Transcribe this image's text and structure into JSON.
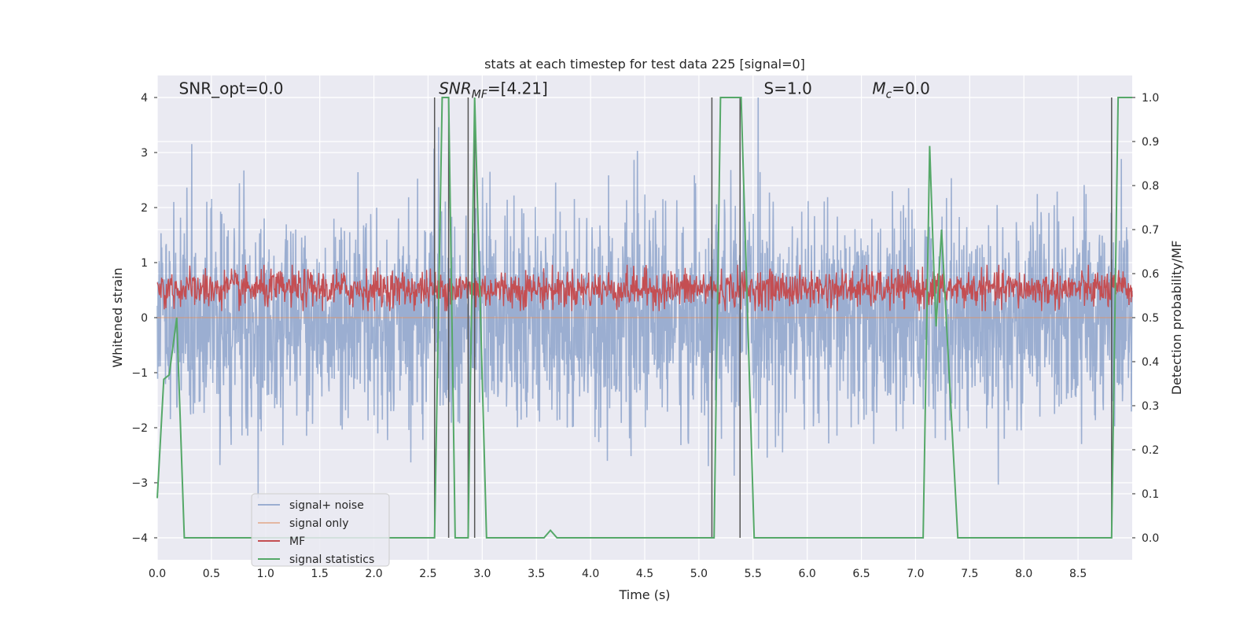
{
  "chart_data": {
    "type": "line",
    "title": "stats at each timestep for test data 225 [signal=0]",
    "xlabel": "Time (s)",
    "ylabel_left": "Whitened strain",
    "ylabel_right": "Detection probability/MF",
    "xlim": [
      0.0,
      9.0
    ],
    "ylim_left": [
      -4.4,
      4.4
    ],
    "ylim_right": [
      -0.05,
      1.05
    ],
    "xticks": [
      "0.0",
      "0.5",
      "1.0",
      "1.5",
      "2.0",
      "2.5",
      "3.0",
      "3.5",
      "4.0",
      "4.5",
      "5.0",
      "5.5",
      "6.0",
      "6.5",
      "7.0",
      "7.5",
      "8.0",
      "8.5"
    ],
    "yticks_left": [
      "−4",
      "−3",
      "−2",
      "−1",
      "0",
      "1",
      "2",
      "3",
      "4"
    ],
    "yticks_right": [
      "0.0",
      "0.1",
      "0.2",
      "0.3",
      "0.4",
      "0.5",
      "0.6",
      "0.7",
      "0.8",
      "0.9",
      "1.0"
    ],
    "grid": true,
    "legend_position": "lower-left",
    "annotations": [
      {
        "text": "SNR_opt=0.0",
        "x": 0.2,
        "y": 4.15
      },
      {
        "text": "SNR_MF=[4.21]",
        "x": 2.6,
        "y": 4.15
      },
      {
        "text": "S=1.0",
        "x": 5.6,
        "y": 4.15
      },
      {
        "text": "M_c=0.0",
        "x": 6.6,
        "y": 4.15
      }
    ],
    "series": [
      {
        "name": "signal+ noise",
        "axis": "left",
        "color": "#4C72B0",
        "alpha": 0.5,
        "description": "whitened strain noise, roughly uniform amplitude ~±1.6 with spikes up to ±4"
      },
      {
        "name": "signal only",
        "axis": "left",
        "color": "#DD8452",
        "alpha": 0.5,
        "values_constant": 0
      },
      {
        "name": "MF",
        "axis": "right",
        "color": "#C44E52",
        "description": "matched-filter output fluctuating between ~0.52 and ~0.61"
      },
      {
        "name": "signal statistics",
        "axis": "right",
        "color": "#55A868",
        "x": [
          0.0,
          0.06,
          0.11,
          0.18,
          0.25,
          2.56,
          2.63,
          2.69,
          2.75,
          2.87,
          2.93,
          3.04,
          3.4,
          3.57,
          3.63,
          3.69,
          5.14,
          5.2,
          5.39,
          5.51,
          7.07,
          7.13,
          7.17,
          7.19,
          7.24,
          7.39,
          8.81,
          8.87,
          9.0
        ],
        "y": [
          0.09,
          0.36,
          0.37,
          0.5,
          0.0,
          0.0,
          1.0,
          1.0,
          0.0,
          0.0,
          1.0,
          0.0,
          0.0,
          0.0,
          0.017,
          0.0,
          0.0,
          1.0,
          1.0,
          0.0,
          0.0,
          0.89,
          0.6,
          0.48,
          0.7,
          0.0,
          0.0,
          1.0,
          1.0
        ]
      }
    ],
    "vertical_lines_x": [
      2.56,
      2.69,
      2.87,
      2.93,
      5.12,
      5.38,
      8.81
    ]
  }
}
